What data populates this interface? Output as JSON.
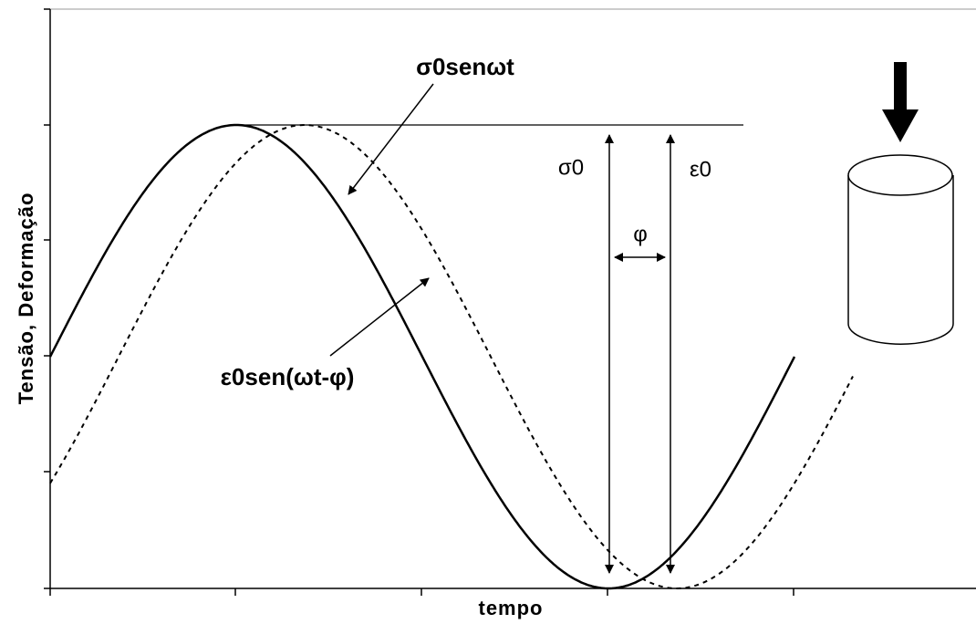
{
  "axes": {
    "y_label": "Tensão, Deformação",
    "x_label": "tempo"
  },
  "annotations": {
    "stress_curve": "σ0senωt",
    "strain_curve": "ε0sen(ωt-φ)",
    "stress_amplitude": "σ0",
    "strain_amplitude": "ε0",
    "phase": "φ"
  }
}
